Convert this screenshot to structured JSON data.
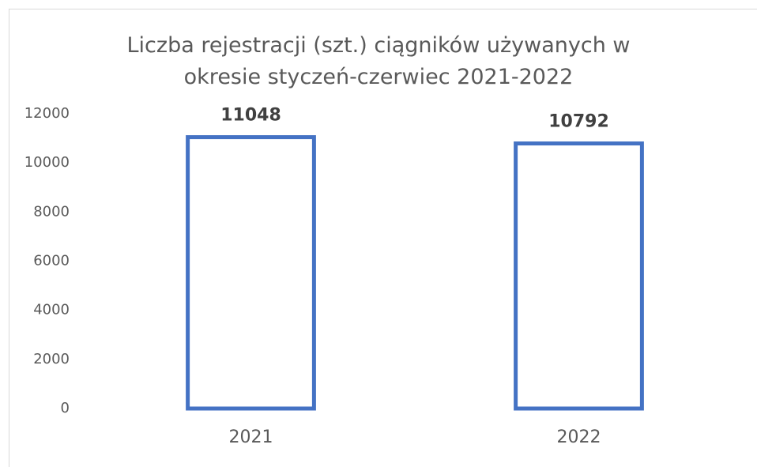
{
  "chart_data": {
    "type": "bar",
    "title": "Liczba rejestracji (szt.) ciągników używanych w okresie styczeń-czerwiec 2021-2022",
    "categories": [
      "2021",
      "2022"
    ],
    "values": [
      11048,
      10792
    ],
    "color": "#4472c4",
    "ylim": [
      0,
      12000
    ],
    "yticks": [
      0,
      2000,
      4000,
      6000,
      8000,
      10000,
      12000
    ],
    "grid": false
  }
}
